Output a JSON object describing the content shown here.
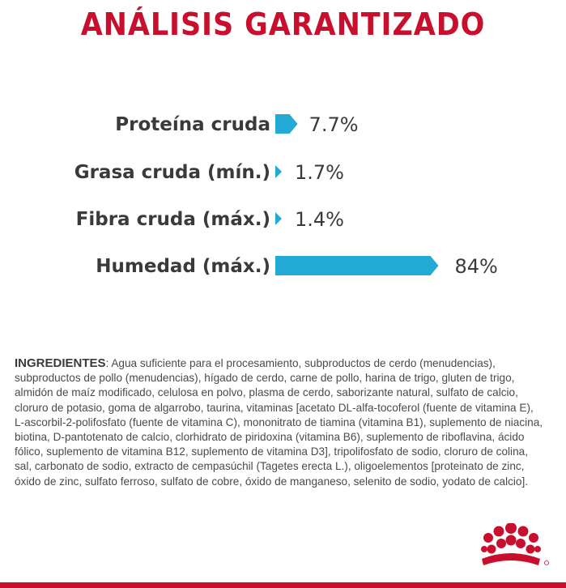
{
  "title": "ANÁLISIS GARANTIZADO",
  "chart_data": {
    "type": "bar",
    "categories": [
      "Proteína cruda",
      "Grasa cruda (mín.)",
      "Fibra cruda (máx.)",
      "Humedad (máx.)"
    ],
    "values": [
      7.7,
      1.7,
      1.4,
      84
    ],
    "value_labels": [
      "7.7%",
      "1.7%",
      "1.4%",
      "84%"
    ],
    "bar_color": "#22a9d4",
    "title": "ANÁLISIS GARANTIZADO",
    "xlabel": "",
    "ylabel": ""
  },
  "ingredients": {
    "title": "INGREDIENTES",
    "text": ": Agua suficiente para el procesamiento, subproductos de cerdo (menudencias), subproductos de pollo (menudencias), hígado de cerdo, carne de pollo, harina de trigo, gluten de trigo, almidón de maíz modificado, celulosa en polvo, plasma de cerdo, saborizante natural, sulfato de calcio, cloruro de potasio, goma de algarrobo, taurina, vitaminas [acetato DL-alfa-tocoferol (fuente de vitamina E), L-ascorbil-2-polifosfato (fuente de vitamina C), mononitrato de tiamina (vitamina B1), suplemento de niacina, biotina, D-pantotenato de calcio, clorhidrato de piridoxina (vitamina B6), suplemento de riboflavina, ácido fólico, suplemento de vitamina B12, suplemento de vitamina D3], tripolifosfato de sodio, cloruro de colina, sal, carbonato de sodio, extracto de cempasúchil (Tagetes erecta L.), oligoelementos [proteinato de zinc, óxido de zinc, sulfato ferroso, sulfato de cobre, óxido de manganeso, selenito de sodio, yodato de calcio]."
  },
  "colors": {
    "title_red": "#c8102e",
    "bar_blue": "#22a9d4",
    "text_gray": "#3a3a3a"
  },
  "logo": {
    "icon": "crown-icon"
  }
}
